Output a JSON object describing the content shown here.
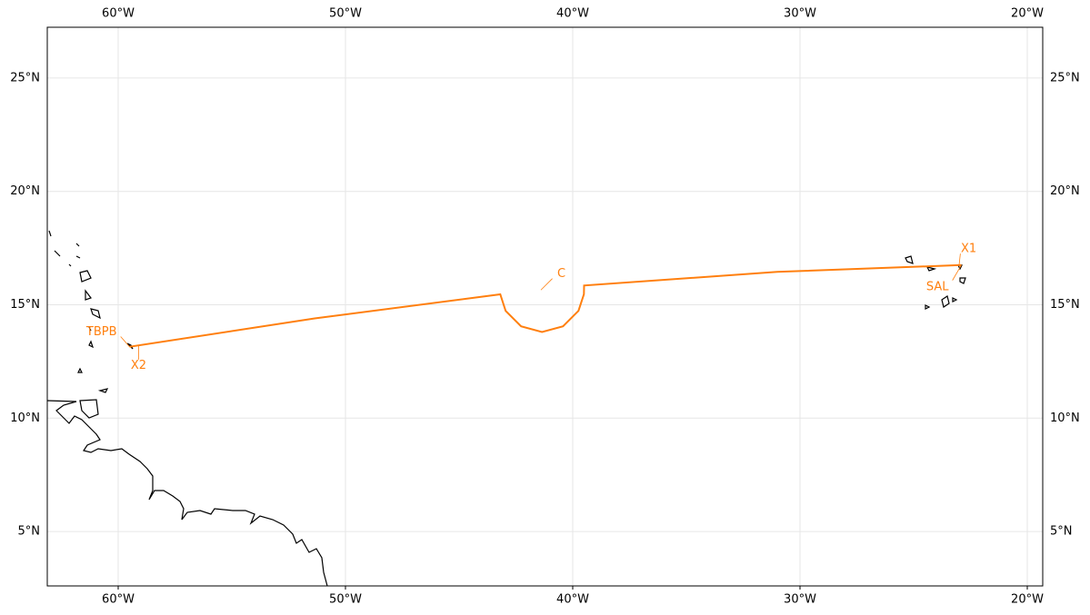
{
  "map": {
    "xlim": [
      -63.12,
      -19.32
    ],
    "ylim": [
      2.6,
      27.24
    ],
    "xticks": [
      {
        "value": -60,
        "label": "60°W"
      },
      {
        "value": -50,
        "label": "50°W"
      },
      {
        "value": -40,
        "label": "40°W"
      },
      {
        "value": -30,
        "label": "30°W"
      },
      {
        "value": -20,
        "label": "20°W"
      }
    ],
    "yticks": [
      {
        "value": 5,
        "label": "5°N"
      },
      {
        "value": 10,
        "label": "10°N"
      },
      {
        "value": 15,
        "label": "15°N"
      },
      {
        "value": 20,
        "label": "20°N"
      },
      {
        "value": 25,
        "label": "25°N"
      }
    ],
    "grid": true,
    "track": {
      "color": "#ff7f0e",
      "lon": [
        -59.5,
        -51.35,
        -43.19,
        -42.95,
        -42.27,
        -41.35,
        -40.43,
        -39.75,
        -39.51,
        -39.5,
        -31.0,
        -22.9
      ],
      "lat": [
        13.15,
        14.4,
        15.46,
        14.73,
        14.05,
        13.8,
        14.05,
        14.73,
        15.46,
        15.85,
        16.45,
        16.75
      ]
    },
    "points": [
      {
        "label": "TBPB",
        "lon": -59.5,
        "lat": 13.15
      },
      {
        "label": "X2",
        "lon": -59.1,
        "lat": 13.2
      },
      {
        "label": "C",
        "lon": -41.4,
        "lat": 15.65
      },
      {
        "label": "X1",
        "lon": -23.0,
        "lat": 16.75
      },
      {
        "label": "SAL",
        "lon": -22.9,
        "lat": 16.75
      }
    ]
  }
}
